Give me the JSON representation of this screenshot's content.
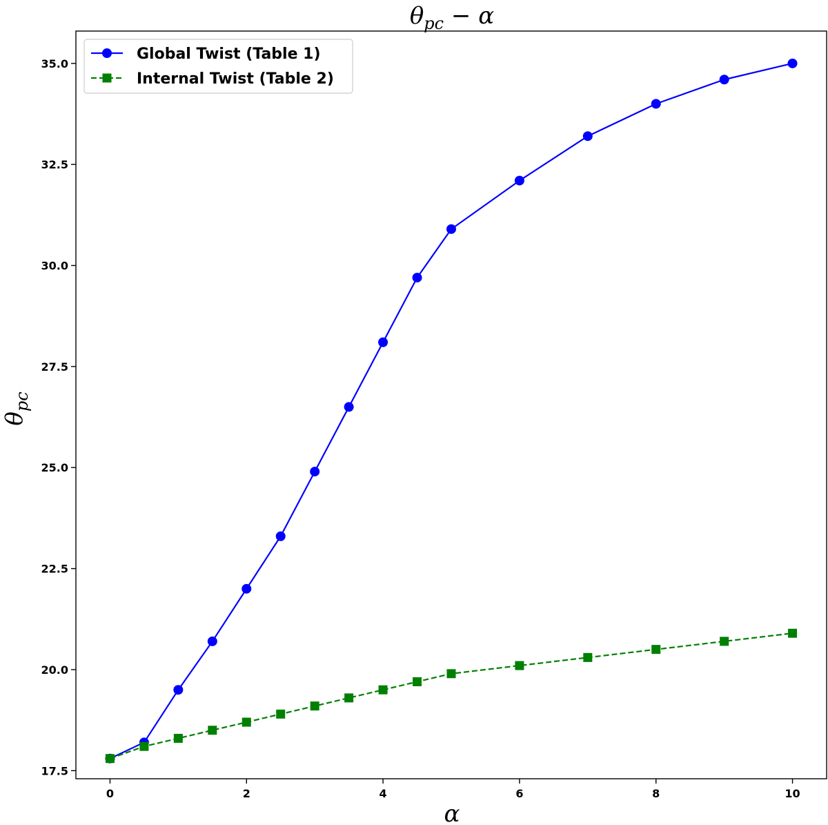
{
  "chart_data": {
    "type": "line",
    "title_parts": {
      "main": "θ",
      "sub": "pc",
      "rest": " − α"
    },
    "xlabel": "α",
    "ylabel_parts": {
      "main": "θ",
      "sub": "pc"
    },
    "xlim": [
      -0.5,
      10.5
    ],
    "ylim": [
      17.3,
      35.8
    ],
    "xticks": [
      0,
      2,
      4,
      6,
      8,
      10
    ],
    "xtick_labels": [
      "0",
      "2",
      "4",
      "6",
      "8",
      "10"
    ],
    "yticks": [
      17.5,
      20.0,
      22.5,
      25.0,
      27.5,
      30.0,
      32.5,
      35.0
    ],
    "ytick_labels": [
      "17.5",
      "20.0",
      "22.5",
      "25.0",
      "27.5",
      "30.0",
      "32.5",
      "35.0"
    ],
    "grid": false,
    "legend_position": "top-left",
    "series": [
      {
        "name": "Global Twist (Table 1)",
        "color": "#0000ff",
        "marker": "circle",
        "line_style": "solid",
        "x": [
          0,
          0.5,
          1,
          1.5,
          2,
          2.5,
          3,
          3.5,
          4,
          4.5,
          5,
          6,
          7,
          8,
          9,
          10
        ],
        "y": [
          17.8,
          18.2,
          19.5,
          20.7,
          22.0,
          23.3,
          24.9,
          26.5,
          28.1,
          29.7,
          30.9,
          32.1,
          33.2,
          34.0,
          34.6,
          35.0
        ]
      },
      {
        "name": "Internal Twist (Table 2)",
        "color": "#008000",
        "marker": "square",
        "line_style": "dashed",
        "x": [
          0,
          0.5,
          1,
          1.5,
          2,
          2.5,
          3,
          3.5,
          4,
          4.5,
          5,
          6,
          7,
          8,
          9,
          10
        ],
        "y": [
          17.8,
          18.1,
          18.3,
          18.5,
          18.7,
          18.9,
          19.1,
          19.3,
          19.5,
          19.7,
          19.9,
          20.1,
          20.3,
          20.5,
          20.7,
          20.9
        ]
      }
    ]
  }
}
